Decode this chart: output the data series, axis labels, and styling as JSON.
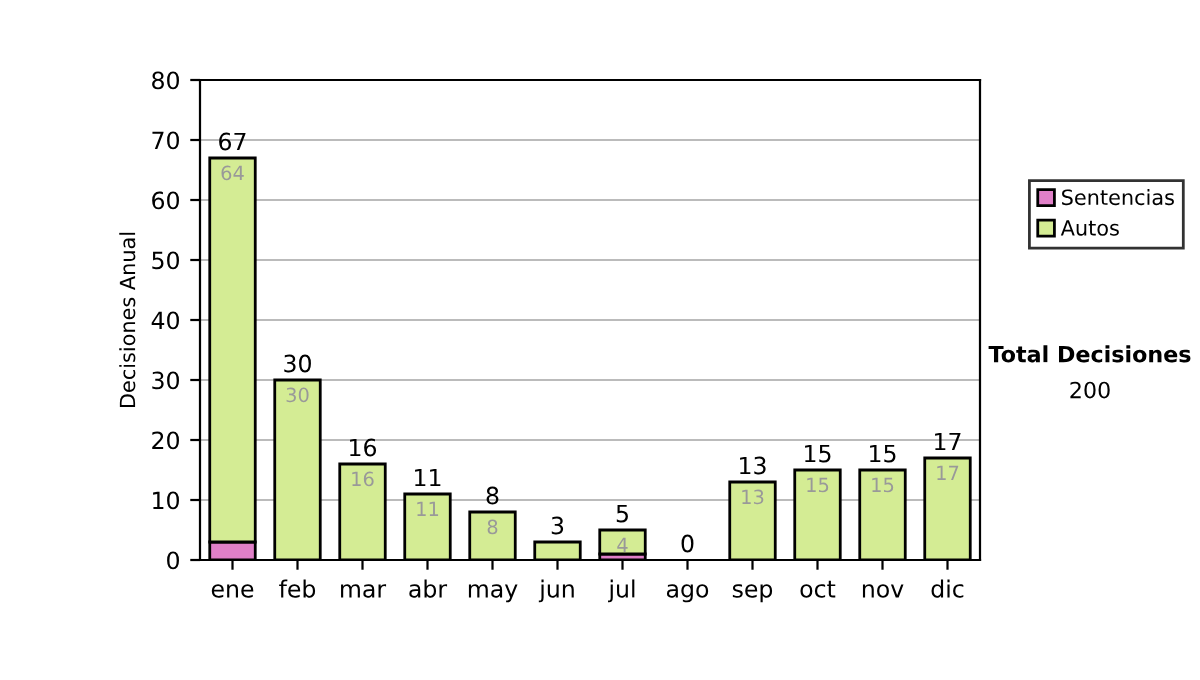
{
  "chart_data": {
    "type": "bar",
    "stacked": true,
    "ylabel": "Decisiones Anual",
    "categories": [
      "ene",
      "feb",
      "mar",
      "abr",
      "may",
      "jun",
      "jul",
      "ago",
      "sep",
      "oct",
      "nov",
      "dic"
    ],
    "series": [
      {
        "name": "Sentencias",
        "color": "#e080c8",
        "values": [
          3,
          0,
          0,
          0,
          0,
          0,
          1,
          0,
          0,
          0,
          0,
          0
        ]
      },
      {
        "name": "Autos",
        "color": "#d4ec94",
        "values": [
          64,
          30,
          16,
          11,
          8,
          3,
          4,
          0,
          13,
          15,
          15,
          17
        ],
        "value_labels": [
          "64",
          "30",
          "16",
          "11",
          "8",
          null,
          "4",
          null,
          "13",
          "15",
          "15",
          "17"
        ]
      }
    ],
    "totals": [
      "67",
      "30",
      "16",
      "11",
      "8",
      "3",
      "5",
      "0",
      "13",
      "15",
      "15",
      "17"
    ],
    "ylim": [
      0,
      80
    ],
    "yticks": [
      0,
      10,
      20,
      30,
      40,
      50,
      60,
      70,
      80
    ],
    "grid": "y",
    "legend": "right",
    "annotations": [
      "Total Decisiones",
      "200"
    ]
  }
}
